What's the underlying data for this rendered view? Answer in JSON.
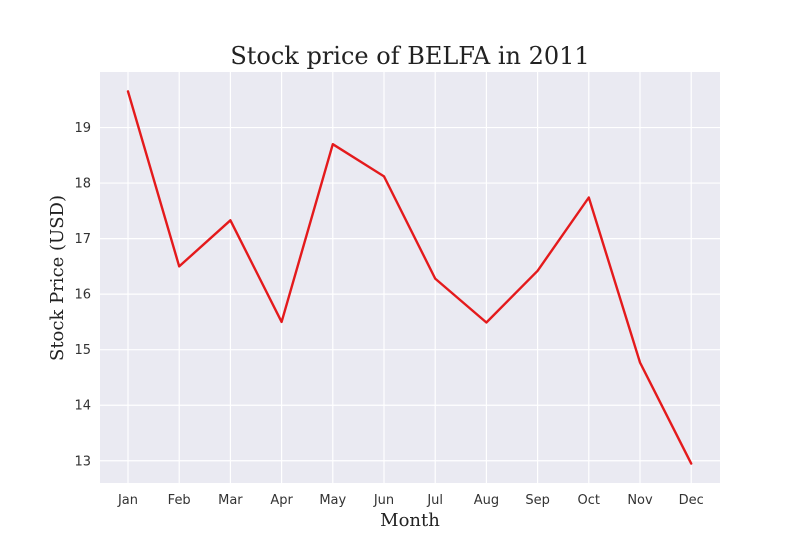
{
  "chart_data": {
    "type": "line",
    "title": "Stock price of BELFA in 2011",
    "xlabel": "Month",
    "ylabel": "Stock Price (USD)",
    "categories": [
      "Jan",
      "Feb",
      "Mar",
      "Apr",
      "May",
      "Jun",
      "Jul",
      "Aug",
      "Sep",
      "Oct",
      "Nov",
      "Dec"
    ],
    "series": [
      {
        "values": [
          19.65,
          16.5,
          17.33,
          15.5,
          18.7,
          18.12,
          16.28,
          15.49,
          16.42,
          17.74,
          14.77,
          12.95
        ],
        "color": "#e41a1c"
      }
    ],
    "ylim": [
      12.6,
      20.0
    ],
    "yticks": [
      13,
      14,
      15,
      16,
      17,
      18,
      19
    ],
    "grid": true,
    "legend": "none",
    "colors": {
      "plot_background": "#eaeaf2",
      "grid": "#ffffff",
      "line": "#e41a1c"
    }
  }
}
